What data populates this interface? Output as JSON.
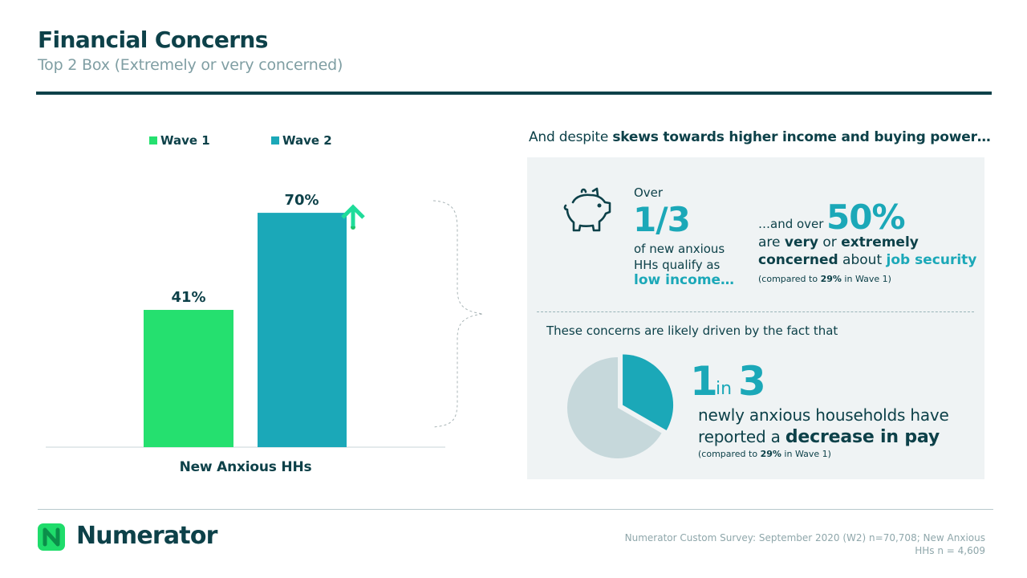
{
  "header": {
    "title": "Financial Concerns",
    "subtitle": "Top 2 Box (Extremely or very concerned)"
  },
  "colors": {
    "dark_teal": "#0d4149",
    "wave1_green": "#25e06f",
    "wave2_teal": "#1ba8b8",
    "arrow_green": "#1fdc9a",
    "panel_bg": "#eff3f4",
    "pie_light": "#c6d8db"
  },
  "chart_data": {
    "type": "bar",
    "categories": [
      "New Anxious HHs"
    ],
    "series": [
      {
        "name": "Wave 1",
        "values": [
          41
        ],
        "data_labels": [
          "41%"
        ]
      },
      {
        "name": "Wave 2",
        "values": [
          70
        ],
        "data_labels": [
          "70%"
        ]
      }
    ],
    "title": "",
    "xlabel": "",
    "ylabel": "",
    "ylim": [
      0,
      100
    ],
    "grid": false,
    "legend": "top",
    "annotations": [
      "up-arrow-icon above Wave 2 bar"
    ]
  },
  "right_panel": {
    "lead_pre": "And despite ",
    "lead_bold": "skews towards higher income and buying power…",
    "stat1": {
      "over": "Over",
      "fraction": "1/3",
      "text_line1": "of new anxious",
      "text_line2": "HHs qualify as",
      "highlight": "low income…",
      "icon": "piggy-bank-icon"
    },
    "stat2": {
      "and_over": "…and over",
      "percent": "50%",
      "line1_pre": "are ",
      "line1_very": "very",
      "line1_or": " or ",
      "line1_extremely": "extremely",
      "line2_concerned": "concerned",
      "line2_about": " about ",
      "line2_highlight": "job security",
      "note_pre": "(compared  to ",
      "note_bold": "29%",
      "note_post": " in Wave 1)"
    },
    "driven": "These concerns are likely driven by the fact that",
    "stat3": {
      "one": "1",
      "in": "in",
      "three": "3",
      "line1": "newly anxious households have",
      "line2_pre": "reported a ",
      "line2_bold": "decrease in pay",
      "note_pre": "(compared  to ",
      "note_bold": "29%",
      "note_post": " in Wave 1)",
      "pie_fraction": 0.3333
    }
  },
  "footer": {
    "brand": "Numerator",
    "source_line1": "Numerator  Custom  Survey:  September  2020  (W2)  n=70,708;  New  Anxious",
    "source_line2": "HHs n = 4,609"
  }
}
